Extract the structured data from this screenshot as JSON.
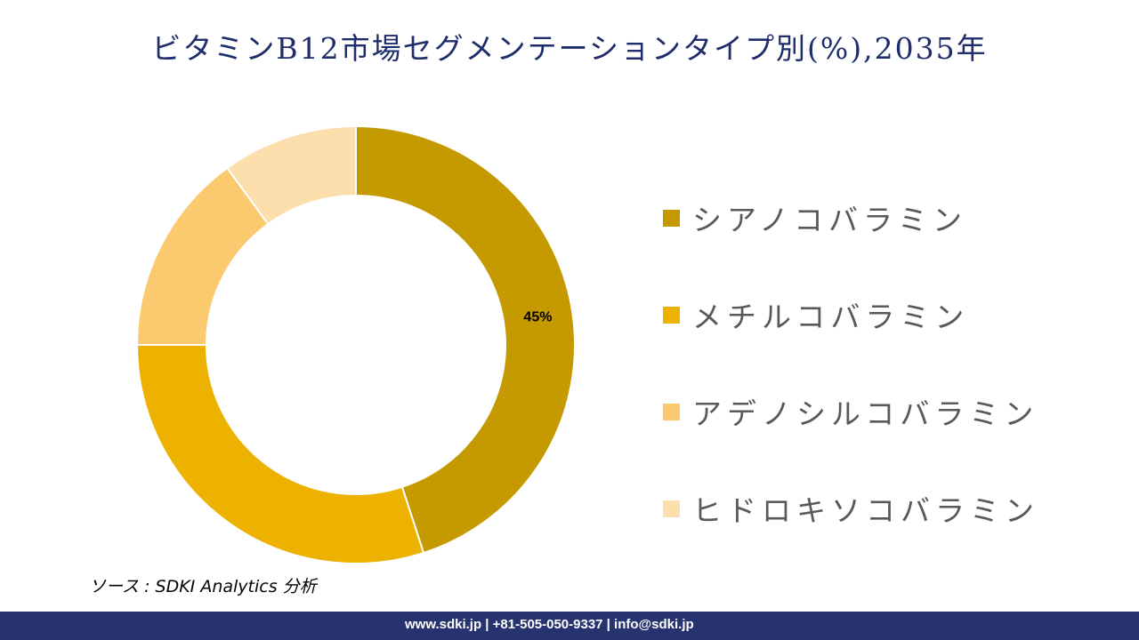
{
  "chart_data": {
    "type": "pie",
    "subtype": "donut",
    "title": "ビタミンB12市場セグメンテーションタイプ別(%),2035年",
    "categories": [
      "シアノコバラミン",
      "メチルコバラミン",
      "アデノシルコバラミン",
      "ヒドロキソコバラミン"
    ],
    "values": [
      45,
      30,
      15,
      10
    ],
    "colors": [
      "#C49A00",
      "#EDB200",
      "#FBC96E",
      "#FDDFAE"
    ],
    "data_labels": [
      "45%",
      "",
      "",
      ""
    ],
    "legend_position": "right"
  },
  "source": "ソース : SDKI Analytics 分析",
  "footer": "www.sdki.jp | +81-505-050-9337 | info@sdki.jp"
}
